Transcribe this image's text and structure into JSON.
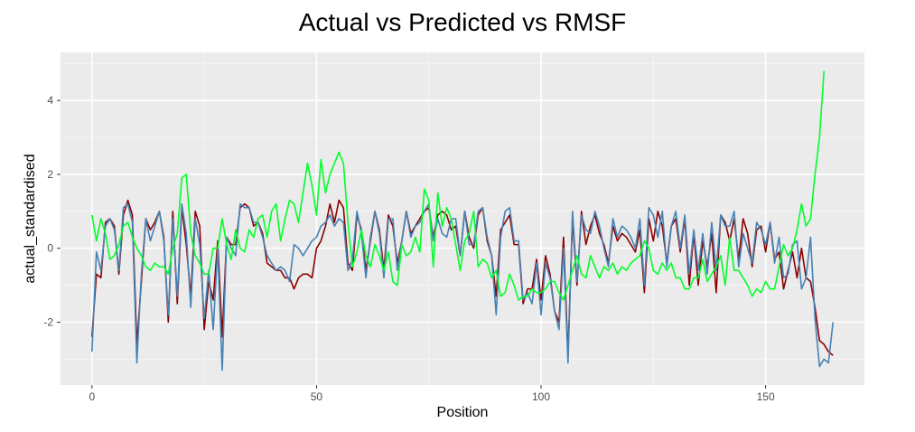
{
  "chart_data": {
    "type": "line",
    "title": "Actual vs Predicted vs RMSF",
    "xlabel": "Position",
    "ylabel": "actual_standardised",
    "xlim": [
      -7,
      172
    ],
    "ylim": [
      -3.7,
      5.3
    ],
    "x_ticks": [
      0,
      50,
      100,
      150
    ],
    "y_ticks": [
      -2,
      0,
      2,
      4
    ],
    "grid": true,
    "legend": "none",
    "series": [
      {
        "color": "#8b0000",
        "values": [
          -2.4,
          -0.7,
          -0.8,
          0.7,
          0.8,
          0.6,
          -0.7,
          0.9,
          1.3,
          0.9,
          -2.6,
          -0.9,
          0.8,
          0.5,
          0.7,
          1.0,
          0.3,
          -2.0,
          1.0,
          -1.5,
          1.1,
          0.1,
          -1.3,
          1.0,
          0.6,
          -2.2,
          -0.9,
          -1.4,
          0.2,
          -2.4,
          0.3,
          0.1,
          0.1,
          1.1,
          1.2,
          1.1,
          0.6,
          0.7,
          0.4,
          -0.4,
          -0.5,
          -0.6,
          -0.6,
          -0.8,
          -0.8,
          -1.1,
          -0.8,
          -0.7,
          -0.7,
          -0.8,
          0.0,
          0.2,
          0.6,
          1.2,
          0.7,
          1.3,
          1.1,
          -0.4,
          -0.6,
          0.9,
          0.5,
          -0.6,
          0.2,
          1.0,
          0.5,
          -0.6,
          0.9,
          0.6,
          -0.4,
          0.2,
          1.0,
          0.4,
          0.6,
          0.8,
          1.0,
          1.1,
          0.3,
          0.9,
          1.0,
          0.9,
          0.5,
          0.6,
          -0.2,
          1.0,
          0.3,
          0.0,
          0.9,
          1.1,
          0.2,
          -0.2,
          -1.3,
          0.5,
          0.7,
          0.9,
          0.1,
          0.1,
          -1.5,
          -1.1,
          -1.1,
          -0.3,
          -1.4,
          -0.2,
          -0.7,
          -1.7,
          -2.0,
          0.3,
          -2.9,
          0.8,
          -1.0,
          1.0,
          0.1,
          0.6,
          0.9,
          0.4,
          0.1,
          -0.4,
          0.6,
          0.2,
          0.4,
          0.3,
          0.1,
          -0.1,
          0.5,
          -1.2,
          0.8,
          0.2,
          1.0,
          0.6,
          -0.4,
          0.6,
          0.8,
          -0.1,
          0.8,
          -1.0,
          0.4,
          -1.0,
          0.2,
          -0.5,
          0.4,
          -1.2,
          0.9,
          0.7,
          0.2,
          0.8,
          -0.3,
          0.8,
          0.4,
          -0.5,
          0.5,
          0.6,
          -0.1,
          0.7,
          -0.3,
          -0.1,
          -1.1,
          -0.6,
          -0.1,
          -0.8,
          0.0,
          -0.8,
          -0.9,
          -1.6,
          -2.5,
          -2.6,
          -2.8,
          -2.9
        ]
      },
      {
        "color": "#4682b4",
        "values": [
          -2.8,
          -0.1,
          -0.6,
          0.6,
          0.8,
          0.5,
          -0.6,
          1.1,
          1.2,
          0.7,
          -3.1,
          -0.7,
          0.8,
          0.2,
          0.6,
          1.0,
          0.2,
          -1.8,
          0.8,
          -1.3,
          1.2,
          0.4,
          -1.6,
          0.8,
          0.1,
          -1.9,
          -0.6,
          -2.2,
          0.0,
          -3.3,
          0.3,
          0.0,
          -0.2,
          1.2,
          1.1,
          1.1,
          0.7,
          0.7,
          0.3,
          -0.2,
          -0.4,
          -0.6,
          -0.5,
          -0.6,
          -0.9,
          0.1,
          0.0,
          -0.2,
          0.0,
          0.2,
          0.3,
          0.6,
          0.7,
          0.9,
          0.6,
          0.8,
          0.7,
          -0.6,
          -0.3,
          1.0,
          0.4,
          -0.8,
          0.3,
          1.0,
          0.4,
          -0.8,
          0.8,
          0.8,
          -0.6,
          0.2,
          1.0,
          0.3,
          0.6,
          0.7,
          1.0,
          1.2,
          0.2,
          0.8,
          0.4,
          0.3,
          0.8,
          0.8,
          -0.2,
          1.0,
          0.1,
          0.1,
          1.0,
          1.1,
          0.3,
          -0.2,
          -1.8,
          0.3,
          1.0,
          1.1,
          0.2,
          0.2,
          -1.4,
          -1.2,
          -1.5,
          -0.4,
          -1.8,
          -0.4,
          -0.8,
          -1.7,
          -2.2,
          0.0,
          -3.1,
          1.0,
          -0.9,
          0.9,
          0.5,
          0.4,
          1.0,
          0.6,
          0.0,
          -0.5,
          0.8,
          0.3,
          0.6,
          0.5,
          0.3,
          0.0,
          0.8,
          -1.0,
          1.1,
          0.9,
          0.3,
          1.0,
          -0.5,
          0.6,
          1.0,
          0.0,
          0.9,
          -0.7,
          0.5,
          -0.6,
          0.4,
          -0.7,
          0.7,
          -0.6,
          0.9,
          0.6,
          0.6,
          1.0,
          -0.5,
          0.4,
          0.0,
          -0.4,
          0.7,
          0.5,
          0.1,
          0.7,
          -0.4,
          0.3,
          -0.8,
          -0.7,
          0.1,
          0.2,
          -1.1,
          -0.8,
          0.3,
          -1.9,
          -3.2,
          -3.0,
          -3.1,
          -2.0
        ]
      },
      {
        "color": "#00ff2a",
        "values": [
          0.9,
          0.2,
          0.8,
          0.4,
          -0.3,
          -0.2,
          0.1,
          0.6,
          0.7,
          0.3,
          0.0,
          -0.2,
          -0.5,
          -0.6,
          -0.4,
          -0.5,
          -0.5,
          -0.7,
          0.0,
          0.4,
          1.9,
          2.0,
          0.4,
          -0.2,
          -0.4,
          -0.7,
          -0.7,
          0.0,
          0.0,
          0.8,
          0.1,
          -0.3,
          0.5,
          0.0,
          -0.1,
          0.5,
          0.3,
          0.8,
          0.9,
          0.3,
          1.0,
          1.2,
          0.2,
          0.8,
          1.3,
          1.2,
          0.7,
          1.5,
          2.3,
          1.7,
          0.9,
          2.4,
          1.5,
          2.0,
          2.3,
          2.6,
          2.3,
          0.7,
          -0.5,
          -0.1,
          0.5,
          -0.2,
          -0.5,
          0.1,
          -0.2,
          -0.6,
          -0.1,
          -0.9,
          -1.0,
          0.1,
          -0.2,
          -0.1,
          0.3,
          -0.1,
          1.6,
          1.3,
          -0.5,
          1.5,
          0.6,
          1.1,
          0.8,
          0.1,
          -0.6,
          0.2,
          0.4,
          1.0,
          -0.5,
          -0.3,
          -0.4,
          -0.8,
          -0.6,
          -1.3,
          -1.2,
          -0.7,
          -1.0,
          -1.4,
          -1.3,
          -1.3,
          -1.1,
          -1.2,
          -1.2,
          -1.1,
          -0.9,
          -0.9,
          -1.2,
          -1.4,
          -1.0,
          -0.6,
          -0.2,
          -0.7,
          -0.8,
          -0.2,
          -0.5,
          -0.8,
          -0.5,
          -0.6,
          -0.4,
          -0.7,
          -0.5,
          -0.6,
          -0.4,
          -0.3,
          -0.2,
          0.2,
          0.0,
          -0.6,
          -0.7,
          -0.4,
          -0.6,
          -0.4,
          -0.8,
          -0.8,
          -1.1,
          -1.1,
          -0.8,
          -0.8,
          -0.3,
          -0.9,
          -0.7,
          -0.5,
          -0.2,
          -1.0,
          0.3,
          -0.6,
          -0.6,
          -0.8,
          -1.0,
          -1.3,
          -1.1,
          -1.2,
          -0.9,
          -1.1,
          -1.1,
          -0.5,
          0.1,
          -0.2,
          0.0,
          0.5,
          1.2,
          0.6,
          0.8,
          2.0,
          3.0,
          4.8
        ]
      }
    ]
  }
}
